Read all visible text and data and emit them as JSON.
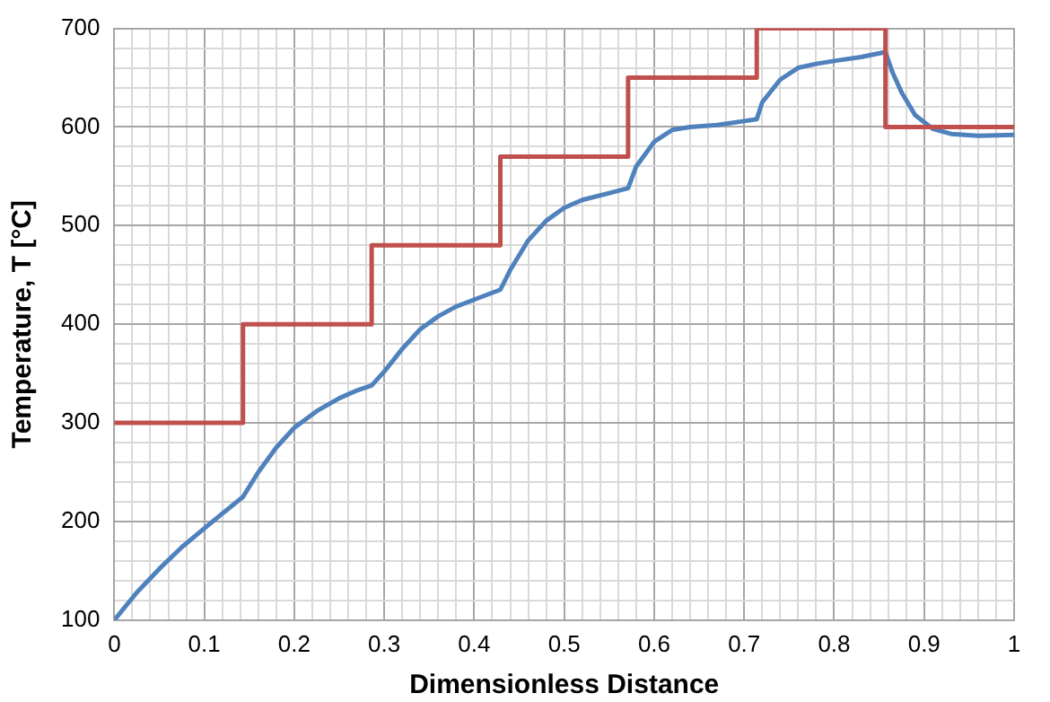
{
  "chart_data": {
    "type": "line",
    "xlabel": "Dimensionless Distance",
    "ylabel": "Temperature, T [°C]",
    "xlim": [
      0,
      1
    ],
    "ylim": [
      100,
      700
    ],
    "xticks": [
      0,
      {
        "value": 0.02,
        "label": null
      },
      {
        "value": 0.04,
        "label": null
      },
      {
        "value": 0.06,
        "label": null
      },
      {
        "value": 0.08,
        "label": null
      },
      0.1,
      {
        "value": 0.12,
        "label": null
      },
      {
        "value": 0.14,
        "label": null
      },
      {
        "value": 0.16,
        "label": null
      },
      {
        "value": 0.18,
        "label": null
      },
      0.2,
      {
        "value": 0.22,
        "label": null
      },
      {
        "value": 0.24,
        "label": null
      },
      {
        "value": 0.26,
        "label": null
      },
      {
        "value": 0.28,
        "label": null
      },
      0.3,
      {
        "value": 0.32,
        "label": null
      },
      {
        "value": 0.34,
        "label": null
      },
      {
        "value": 0.36,
        "label": null
      },
      {
        "value": 0.38,
        "label": null
      },
      0.4,
      {
        "value": 0.42,
        "label": null
      },
      {
        "value": 0.44,
        "label": null
      },
      {
        "value": 0.46,
        "label": null
      },
      {
        "value": 0.48,
        "label": null
      },
      0.5,
      {
        "value": 0.52,
        "label": null
      },
      {
        "value": 0.54,
        "label": null
      },
      {
        "value": 0.56,
        "label": null
      },
      {
        "value": 0.58,
        "label": null
      },
      0.6,
      {
        "value": 0.62,
        "label": null
      },
      {
        "value": 0.64,
        "label": null
      },
      {
        "value": 0.66,
        "label": null
      },
      {
        "value": 0.68,
        "label": null
      },
      0.7,
      {
        "value": 0.72,
        "label": null
      },
      {
        "value": 0.74,
        "label": null
      },
      {
        "value": 0.76,
        "label": null
      },
      {
        "value": 0.78,
        "label": null
      },
      0.8,
      {
        "value": 0.82,
        "label": null
      },
      {
        "value": 0.84,
        "label": null
      },
      {
        "value": 0.86,
        "label": null
      },
      {
        "value": 0.88,
        "label": null
      },
      0.9,
      {
        "value": 0.92,
        "label": null
      },
      {
        "value": 0.94,
        "label": null
      },
      {
        "value": 0.96,
        "label": null
      },
      {
        "value": 0.98,
        "label": null
      },
      1
    ],
    "yticks": [
      100,
      {
        "value": 120,
        "label": null
      },
      {
        "value": 140,
        "label": null
      },
      {
        "value": 160,
        "label": null
      },
      {
        "value": 180,
        "label": null
      },
      200,
      {
        "value": 220,
        "label": null
      },
      {
        "value": 240,
        "label": null
      },
      {
        "value": 260,
        "label": null
      },
      {
        "value": 280,
        "label": null
      },
      300,
      {
        "value": 320,
        "label": null
      },
      {
        "value": 340,
        "label": null
      },
      {
        "value": 360,
        "label": null
      },
      {
        "value": 380,
        "label": null
      },
      400,
      {
        "value": 420,
        "label": null
      },
      {
        "value": 440,
        "label": null
      },
      {
        "value": 460,
        "label": null
      },
      {
        "value": 480,
        "label": null
      },
      500,
      {
        "value": 520,
        "label": null
      },
      {
        "value": 540,
        "label": null
      },
      {
        "value": 560,
        "label": null
      },
      {
        "value": 580,
        "label": null
      },
      600,
      {
        "value": 620,
        "label": null
      },
      {
        "value": 640,
        "label": null
      },
      {
        "value": 660,
        "label": null
      },
      {
        "value": 680,
        "label": null
      },
      700
    ],
    "grid": true,
    "marker": "none",
    "line_style": "solid",
    "series": [
      {
        "type": "step",
        "color": "#c0504d",
        "x": [
          0,
          0.143,
          0.286,
          0.429,
          0.571,
          0.714,
          0.857,
          1
        ],
        "values": [
          300,
          400,
          480,
          570,
          650,
          700,
          600,
          600
        ]
      },
      {
        "type": "line",
        "color": "#4f81bd",
        "x": [
          0,
          0.025,
          0.05,
          0.075,
          0.1,
          0.12,
          0.143,
          0.16,
          0.18,
          0.2,
          0.225,
          0.25,
          0.27,
          0.286,
          0.3,
          0.32,
          0.34,
          0.36,
          0.38,
          0.4,
          0.429,
          0.44,
          0.46,
          0.48,
          0.5,
          0.52,
          0.55,
          0.571,
          0.58,
          0.6,
          0.62,
          0.64,
          0.67,
          0.7,
          0.714,
          0.72,
          0.74,
          0.76,
          0.78,
          0.8,
          0.83,
          0.857,
          0.865,
          0.875,
          0.89,
          0.91,
          0.93,
          0.96,
          1
        ],
        "values": [
          100,
          128,
          152,
          174,
          193,
          208,
          225,
          250,
          275,
          295,
          312,
          325,
          333,
          338,
          352,
          375,
          395,
          408,
          418,
          425,
          435,
          455,
          485,
          505,
          518,
          526,
          533,
          538,
          560,
          585,
          597,
          600,
          602,
          606,
          608,
          625,
          648,
          660,
          664,
          667,
          671,
          676,
          655,
          635,
          612,
          598,
          593,
          591,
          592
        ]
      }
    ]
  }
}
